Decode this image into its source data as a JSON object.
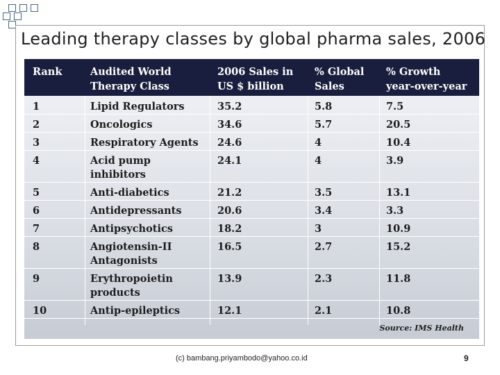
{
  "slide": {
    "title": "Leading therapy classes by global pharma sales, 2006",
    "footer": "(c) bambang.priyambodo@yahoo.co.id",
    "page_number": "9"
  },
  "table": {
    "headers": [
      "Rank",
      "Audited World\nTherapy Class",
      "2006 Sales in\nUS $  billion",
      "% Global\nSales",
      "% Growth\nyear-over-year"
    ],
    "rows": [
      [
        "1",
        "Lipid Regulators",
        "35.2",
        "5.8",
        "7.5"
      ],
      [
        "2",
        "Oncologics",
        "34.6",
        "5.7",
        "20.5"
      ],
      [
        "3",
        "Respiratory Agents",
        "24.6",
        "4",
        "10.4"
      ],
      [
        "4",
        "Acid pump\ninhibitors",
        "24.1",
        "4",
        "3.9"
      ],
      [
        "5",
        "Anti-diabetics",
        "21.2",
        "3.5",
        "13.1"
      ],
      [
        "6",
        "Antidepressants",
        "20.6",
        "3.4",
        "3.3"
      ],
      [
        "7",
        "Antipsychotics",
        "18.2",
        "3",
        "10.9"
      ],
      [
        "8",
        "Angiotensin-II\nAntagonists",
        "16.5",
        "2.7",
        "15.2"
      ],
      [
        "9",
        "Erythropoietin\nproducts",
        "13.9",
        "2.3",
        "11.8"
      ],
      [
        "10",
        "Antip-epileptics",
        "12.1",
        "2.1",
        "10.8"
      ]
    ],
    "source": "Source: IMS Health"
  },
  "colors": {
    "header_bg": "#1a1e3e",
    "header_text": "#ffffff",
    "body_text": "#1c1c1c",
    "accent_squares": "#4a6484"
  }
}
